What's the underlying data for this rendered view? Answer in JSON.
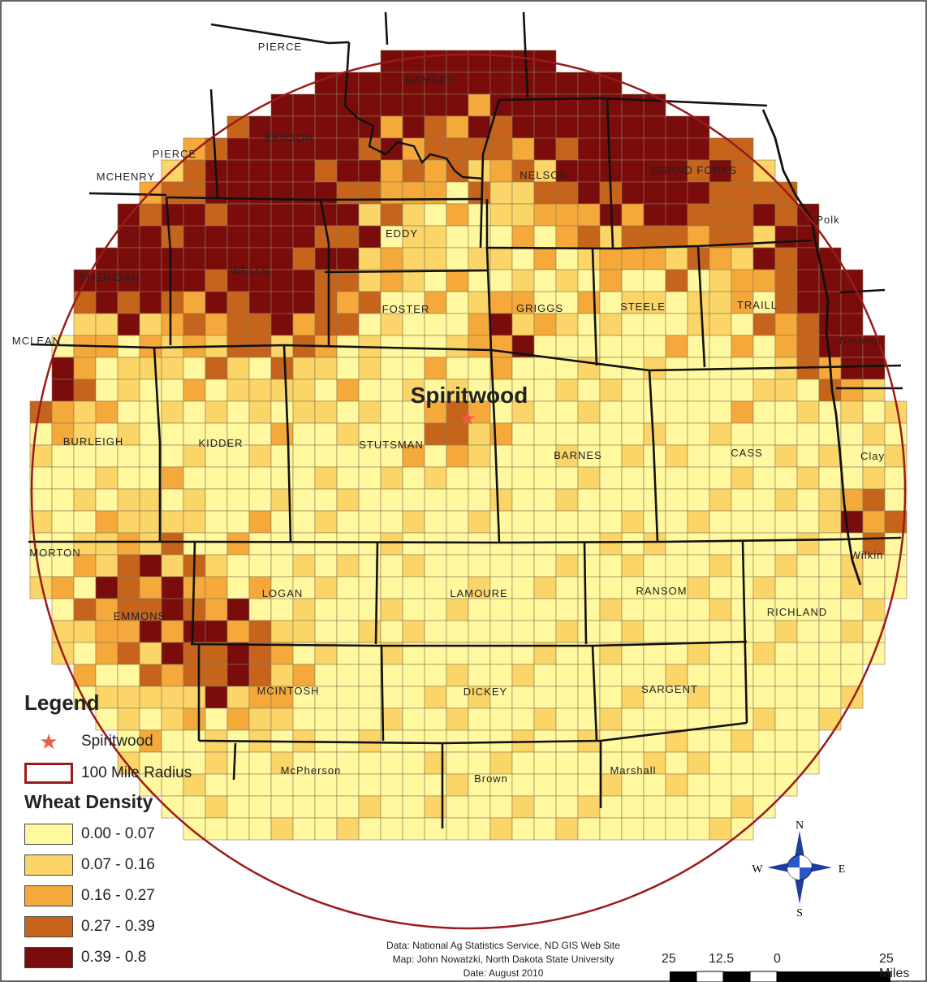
{
  "map": {
    "place_label": "Spiritwood",
    "counties": [
      "PIERCE",
      "RAMSEY",
      "BENSON",
      "PIERCE",
      "MCHENRY",
      "NELSON",
      "GRAND FORKS",
      "EDDY",
      "SHERIDAN",
      "WELLS",
      "FOSTER",
      "GRIGGS",
      "STEELE",
      "TRAILL",
      "MCLEAN",
      "Polk",
      "Norman",
      "BURLEIGH",
      "KIDDER",
      "STUTSMAN",
      "BARNES",
      "CASS",
      "Clay",
      "MORTON",
      "LOGAN",
      "LAMOURE",
      "RANSOM",
      "RICHLAND",
      "Wilkin",
      "EMMONS",
      "MCINTOSH",
      "DICKEY",
      "SARGENT",
      "McPherson",
      "Brown",
      "Marshall"
    ],
    "class_colors": [
      "#fff89e",
      "#fbd567",
      "#f6a93b",
      "#c6641c",
      "#7a0c0c"
    ]
  },
  "legend": {
    "title": "Legend",
    "star_label": "Spiritwood",
    "radius_label": "100 Mile Radius",
    "density_title": "Wheat Density",
    "classes": [
      {
        "label": "0.00 - 0.07",
        "color": "#fff89e"
      },
      {
        "label": "0.07 - 0.16",
        "color": "#fbd567"
      },
      {
        "label": "0.16 - 0.27",
        "color": "#f6a93b"
      },
      {
        "label": "0.27 - 0.39",
        "color": "#c6641c"
      },
      {
        "label": "0.39 - 0.8",
        "color": "#7a0c0c"
      }
    ]
  },
  "compass": {
    "n": "N",
    "s": "S",
    "e": "E",
    "w": "W"
  },
  "credits": {
    "line1": "Data: National Ag Statistics Service, ND GIS Web Site",
    "line2": "Map: John Nowatzki, North Dakota State University",
    "line3": "Date: August 2010"
  },
  "scale": {
    "labels": [
      "25",
      "12.5",
      "0",
      "25 Miles"
    ]
  }
}
